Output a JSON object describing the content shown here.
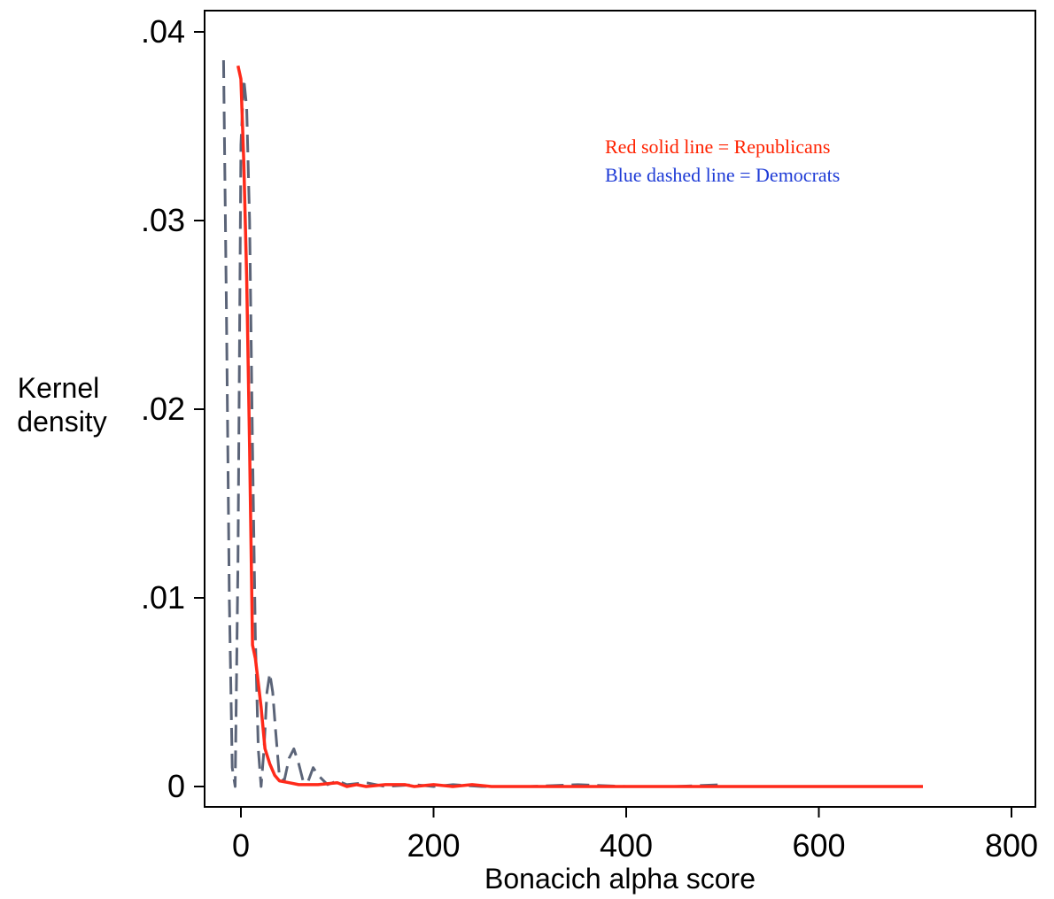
{
  "chart_data": {
    "type": "line",
    "title": "",
    "xlabel": "Bonacich alpha score",
    "ylabel_line1": "Kernel",
    "ylabel_line2": "density",
    "xlim": [
      -20,
      800
    ],
    "ylim": [
      -0.0012,
      0.041
    ],
    "x_ticks": [
      0,
      200,
      400,
      600,
      800
    ],
    "x_tick_labels": [
      "0",
      "200",
      "400",
      "600",
      "800"
    ],
    "y_ticks": [
      0,
      0.01,
      0.02,
      0.03,
      0.04
    ],
    "y_tick_labels": [
      "0",
      ".01",
      ".02",
      ".03",
      ".04"
    ],
    "grid": false,
    "legend_position": "top-right",
    "annotations": [
      {
        "text": "Red solid line = Republicans",
        "color": "#ff2200"
      },
      {
        "text": "Blue dashed line = Democrats",
        "color": "#1e3bd6"
      }
    ],
    "series": [
      {
        "key": "republicans",
        "style": "solid",
        "color": "#ff2a1a",
        "points": [
          [
            -3,
            0.0382
          ],
          [
            0,
            0.0375
          ],
          [
            3,
            0.033
          ],
          [
            6,
            0.027
          ],
          [
            9,
            0.018
          ],
          [
            12,
            0.0075
          ],
          [
            15,
            0.0068
          ],
          [
            18,
            0.0055
          ],
          [
            21,
            0.0042
          ],
          [
            25,
            0.002
          ],
          [
            30,
            0.0012
          ],
          [
            35,
            0.0006
          ],
          [
            40,
            0.0003
          ],
          [
            50,
            0.0002
          ],
          [
            60,
            0.0001
          ],
          [
            80,
            0.0001
          ],
          [
            100,
            0.0002
          ],
          [
            110,
            0
          ],
          [
            120,
            0.0001
          ],
          [
            130,
            0
          ],
          [
            150,
            0.0001
          ],
          [
            170,
            0.0001
          ],
          [
            180,
            0
          ],
          [
            200,
            0.0001
          ],
          [
            220,
            0
          ],
          [
            240,
            0.0001
          ],
          [
            260,
            0
          ],
          [
            300,
            0
          ],
          [
            400,
            0
          ],
          [
            500,
            0
          ],
          [
            600,
            0
          ],
          [
            708,
            0
          ]
        ]
      },
      {
        "key": "democrats",
        "style": "dashed",
        "color": "#5b6478",
        "points": [
          [
            -18,
            0.0385
          ],
          [
            -15,
            0.025
          ],
          [
            -12,
            0.01
          ],
          [
            -9,
            0.001
          ],
          [
            -6,
            0
          ],
          [
            -3,
            0.012
          ],
          [
            0,
            0.034
          ],
          [
            3,
            0.0375
          ],
          [
            6,
            0.036
          ],
          [
            9,
            0.03
          ],
          [
            12,
            0.018
          ],
          [
            15,
            0.008
          ],
          [
            18,
            0.002
          ],
          [
            21,
            0
          ],
          [
            24,
            0.002
          ],
          [
            27,
            0.005
          ],
          [
            30,
            0.006
          ],
          [
            33,
            0.005
          ],
          [
            36,
            0.003
          ],
          [
            40,
            0.0005
          ],
          [
            45,
            0.0003
          ],
          [
            50,
            0.0015
          ],
          [
            55,
            0.002
          ],
          [
            60,
            0.0012
          ],
          [
            65,
            0.0002
          ],
          [
            70,
            0.0003
          ],
          [
            75,
            0.001
          ],
          [
            80,
            0.0006
          ],
          [
            90,
            0.0001
          ],
          [
            100,
            0.0003
          ],
          [
            110,
            0.0001
          ],
          [
            130,
            0.0002
          ],
          [
            150,
            0
          ],
          [
            180,
            0.0001
          ],
          [
            200,
            0
          ],
          [
            220,
            0.0001
          ],
          [
            250,
            0
          ],
          [
            300,
            0
          ],
          [
            350,
            0.0001
          ],
          [
            400,
            0
          ],
          [
            450,
            0
          ],
          [
            500,
            0.0001
          ]
        ]
      }
    ]
  }
}
